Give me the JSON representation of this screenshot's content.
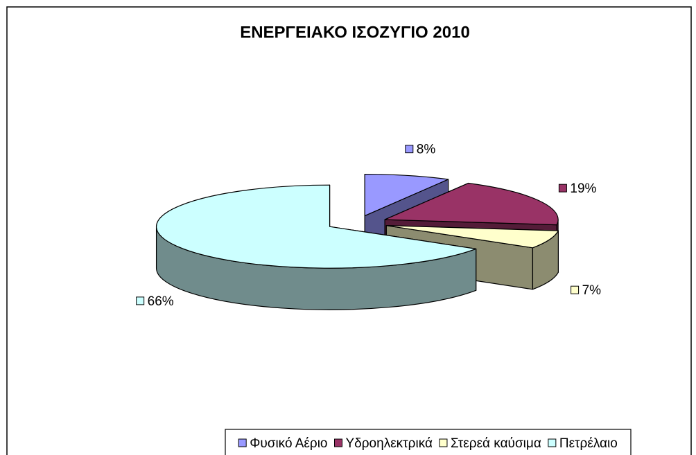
{
  "chart_data": {
    "type": "pie",
    "title": "ΕΝΕΡΓΕΙΑΚΟ ΙΣΟΖΥΓΙΟ 2010",
    "categories": [
      "Φυσικό Αέριο",
      "Υδροηλεκτρικά",
      "Στερεά καύσιμα",
      "Πετρέλαιο"
    ],
    "values": [
      8,
      19,
      7,
      66
    ],
    "value_labels": [
      "8%",
      "19%",
      "7%",
      "66%"
    ],
    "colors": [
      "#9999ff",
      "#993366",
      "#ffffcc",
      "#ccffff"
    ],
    "legend": "bottom"
  }
}
